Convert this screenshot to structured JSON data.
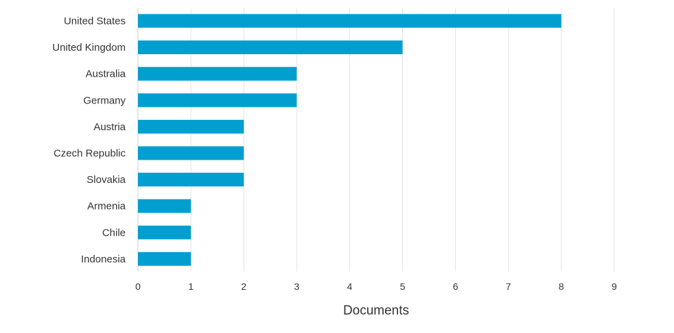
{
  "chart_data": {
    "type": "bar",
    "orientation": "horizontal",
    "categories": [
      "United States",
      "United Kingdom",
      "Australia",
      "Germany",
      "Austria",
      "Czech Republic",
      "Slovakia",
      "Armenia",
      "Chile",
      "Indonesia"
    ],
    "values": [
      8,
      5,
      3,
      3,
      2,
      2,
      2,
      1,
      1,
      1
    ],
    "xlabel": "Documents",
    "ylabel": "",
    "xlim": [
      0,
      9
    ],
    "xticks": [
      "0",
      "1",
      "2",
      "3",
      "4",
      "5",
      "6",
      "7",
      "8",
      "9"
    ],
    "grid": "vertical",
    "legend": "none",
    "bar_color": "#009fd0",
    "grid_color": "#e2e2e2",
    "text_color": "#333333"
  }
}
